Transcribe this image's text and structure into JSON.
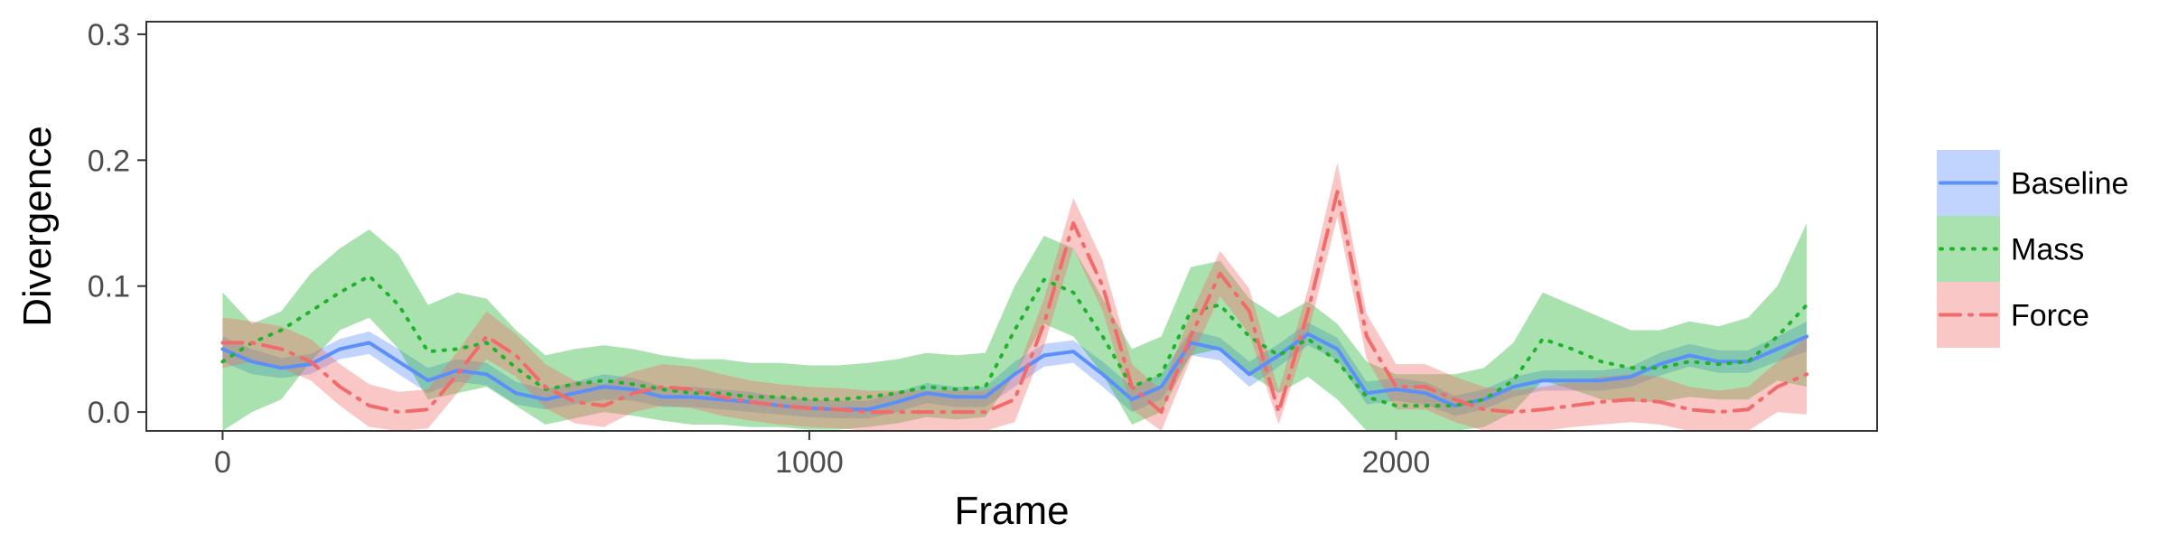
{
  "chart_data": {
    "type": "line",
    "title": "",
    "xlabel": "Frame",
    "ylabel": "Divergence",
    "xlim": [
      -130,
      2820
    ],
    "ylim": [
      -0.015,
      0.31
    ],
    "x_ticks": [
      0,
      1000,
      2000
    ],
    "y_ticks": [
      0.0,
      0.1,
      0.2,
      0.3
    ],
    "x_tick_labels": [
      "0",
      "1000",
      "2000"
    ],
    "y_tick_labels": [
      "0.0",
      "0.1",
      "0.2",
      "0.3"
    ],
    "grid": false,
    "legend_position": "right",
    "series": [
      {
        "name": "Baseline",
        "color": "#5b8ff9",
        "line_style": "solid",
        "x": [
          0,
          50,
          100,
          150,
          200,
          250,
          300,
          350,
          400,
          450,
          500,
          550,
          600,
          650,
          700,
          750,
          800,
          850,
          900,
          950,
          1000,
          1050,
          1100,
          1150,
          1200,
          1250,
          1300,
          1350,
          1400,
          1450,
          1500,
          1550,
          1600,
          1650,
          1700,
          1750,
          1800,
          1850,
          1900,
          1950,
          2000,
          2050,
          2100,
          2150,
          2200,
          2250,
          2300,
          2350,
          2400,
          2450,
          2500,
          2550,
          2600,
          2650,
          2700
        ],
        "values": [
          0.05,
          0.04,
          0.035,
          0.038,
          0.05,
          0.055,
          0.04,
          0.025,
          0.033,
          0.03,
          0.015,
          0.01,
          0.015,
          0.02,
          0.018,
          0.012,
          0.012,
          0.01,
          0.008,
          0.005,
          0.003,
          0.002,
          0.002,
          0.008,
          0.015,
          0.012,
          0.012,
          0.03,
          0.045,
          0.048,
          0.03,
          0.01,
          0.02,
          0.055,
          0.05,
          0.03,
          0.045,
          0.062,
          0.05,
          0.015,
          0.018,
          0.015,
          0.005,
          0.01,
          0.02,
          0.025,
          0.025,
          0.025,
          0.028,
          0.038,
          0.045,
          0.04,
          0.04,
          0.05,
          0.06
        ],
        "lower": [
          0.04,
          0.03,
          0.027,
          0.03,
          0.042,
          0.046,
          0.03,
          0.015,
          0.024,
          0.021,
          0.006,
          0.002,
          0.006,
          0.01,
          0.009,
          0.004,
          0.004,
          0.002,
          0.0,
          -0.002,
          -0.004,
          -0.005,
          -0.005,
          0.0,
          0.007,
          0.004,
          0.004,
          0.02,
          0.036,
          0.039,
          0.02,
          0.0,
          0.01,
          0.045,
          0.041,
          0.02,
          0.036,
          0.053,
          0.041,
          0.006,
          0.009,
          0.006,
          -0.003,
          0.002,
          0.012,
          0.017,
          0.017,
          0.017,
          0.02,
          0.029,
          0.036,
          0.031,
          0.031,
          0.04,
          0.048
        ],
        "upper": [
          0.06,
          0.05,
          0.043,
          0.046,
          0.058,
          0.064,
          0.05,
          0.035,
          0.042,
          0.039,
          0.024,
          0.018,
          0.024,
          0.03,
          0.027,
          0.02,
          0.02,
          0.018,
          0.016,
          0.012,
          0.01,
          0.009,
          0.009,
          0.016,
          0.023,
          0.02,
          0.02,
          0.04,
          0.054,
          0.057,
          0.04,
          0.02,
          0.03,
          0.065,
          0.059,
          0.04,
          0.054,
          0.071,
          0.059,
          0.024,
          0.027,
          0.024,
          0.013,
          0.018,
          0.028,
          0.033,
          0.033,
          0.033,
          0.036,
          0.047,
          0.054,
          0.049,
          0.049,
          0.06,
          0.072
        ]
      },
      {
        "name": "Mass",
        "color": "#1fb32c",
        "line_style": "dotted",
        "x": [
          0,
          50,
          100,
          150,
          200,
          250,
          300,
          350,
          400,
          450,
          500,
          550,
          600,
          650,
          700,
          750,
          800,
          850,
          900,
          950,
          1000,
          1050,
          1100,
          1150,
          1200,
          1250,
          1300,
          1350,
          1400,
          1450,
          1500,
          1550,
          1600,
          1650,
          1700,
          1750,
          1800,
          1850,
          1900,
          1950,
          2000,
          2050,
          2100,
          2150,
          2200,
          2250,
          2300,
          2350,
          2400,
          2450,
          2500,
          2550,
          2600,
          2650,
          2700
        ],
        "values": [
          0.04,
          0.055,
          0.065,
          0.08,
          0.095,
          0.108,
          0.085,
          0.048,
          0.05,
          0.055,
          0.035,
          0.018,
          0.022,
          0.025,
          0.022,
          0.018,
          0.015,
          0.015,
          0.012,
          0.012,
          0.01,
          0.01,
          0.012,
          0.015,
          0.02,
          0.018,
          0.02,
          0.065,
          0.105,
          0.095,
          0.06,
          0.02,
          0.03,
          0.08,
          0.085,
          0.06,
          0.045,
          0.058,
          0.04,
          0.012,
          0.005,
          0.005,
          0.005,
          0.01,
          0.025,
          0.058,
          0.05,
          0.04,
          0.035,
          0.035,
          0.04,
          0.038,
          0.04,
          0.06,
          0.085
        ],
        "lower": [
          -0.015,
          0.0,
          0.01,
          0.04,
          0.065,
          0.075,
          0.05,
          0.01,
          0.015,
          0.02,
          0.005,
          -0.01,
          -0.005,
          0.0,
          -0.003,
          -0.007,
          -0.01,
          -0.01,
          -0.012,
          -0.012,
          -0.014,
          -0.014,
          -0.012,
          -0.009,
          -0.004,
          -0.006,
          -0.004,
          0.03,
          0.07,
          0.06,
          0.03,
          -0.01,
          0.0,
          0.045,
          0.05,
          0.03,
          0.015,
          0.028,
          0.01,
          -0.015,
          -0.015,
          -0.015,
          -0.015,
          -0.012,
          0.0,
          0.025,
          0.018,
          0.01,
          0.008,
          0.008,
          0.012,
          0.01,
          0.01,
          0.025,
          0.02
        ],
        "upper": [
          0.095,
          0.07,
          0.08,
          0.11,
          0.13,
          0.145,
          0.125,
          0.085,
          0.095,
          0.09,
          0.065,
          0.045,
          0.05,
          0.053,
          0.05,
          0.045,
          0.042,
          0.042,
          0.039,
          0.039,
          0.037,
          0.037,
          0.039,
          0.042,
          0.047,
          0.045,
          0.047,
          0.1,
          0.14,
          0.13,
          0.09,
          0.05,
          0.06,
          0.115,
          0.12,
          0.09,
          0.075,
          0.088,
          0.07,
          0.04,
          0.03,
          0.03,
          0.03,
          0.035,
          0.055,
          0.095,
          0.085,
          0.075,
          0.065,
          0.065,
          0.072,
          0.068,
          0.075,
          0.1,
          0.15
        ]
      },
      {
        "name": "Force",
        "color": "#f26b6b",
        "line_style": "dashdot",
        "x": [
          0,
          50,
          100,
          150,
          200,
          250,
          300,
          350,
          400,
          450,
          500,
          550,
          600,
          650,
          700,
          750,
          800,
          850,
          900,
          950,
          1000,
          1050,
          1100,
          1150,
          1200,
          1250,
          1300,
          1350,
          1400,
          1450,
          1500,
          1550,
          1600,
          1650,
          1700,
          1750,
          1800,
          1850,
          1900,
          1950,
          2000,
          2050,
          2100,
          2150,
          2200,
          2250,
          2300,
          2350,
          2400,
          2450,
          2500,
          2550,
          2600,
          2650,
          2700
        ],
        "values": [
          0.055,
          0.055,
          0.05,
          0.04,
          0.02,
          0.005,
          0.0,
          0.002,
          0.03,
          0.06,
          0.045,
          0.02,
          0.008,
          0.005,
          0.015,
          0.02,
          0.018,
          0.012,
          0.008,
          0.005,
          0.003,
          0.002,
          0.0,
          0.0,
          0.0,
          0.0,
          0.0,
          0.01,
          0.07,
          0.15,
          0.1,
          0.02,
          0.0,
          0.06,
          0.11,
          0.08,
          0.0,
          0.08,
          0.175,
          0.06,
          0.02,
          0.02,
          0.01,
          0.002,
          0.0,
          0.002,
          0.005,
          0.008,
          0.01,
          0.008,
          0.002,
          0.0,
          0.002,
          0.02,
          0.03
        ],
        "lower": [
          0.035,
          0.04,
          0.035,
          0.025,
          0.005,
          -0.012,
          -0.015,
          -0.013,
          0.015,
          0.042,
          0.028,
          0.003,
          -0.009,
          -0.012,
          0.0,
          0.005,
          0.003,
          -0.003,
          -0.007,
          -0.01,
          -0.012,
          -0.013,
          -0.015,
          -0.015,
          -0.015,
          -0.015,
          -0.015,
          -0.008,
          0.052,
          0.13,
          0.08,
          0.002,
          -0.015,
          0.042,
          0.092,
          0.062,
          -0.01,
          0.062,
          0.155,
          0.042,
          0.002,
          0.002,
          -0.008,
          -0.015,
          -0.015,
          -0.015,
          -0.012,
          -0.01,
          -0.008,
          -0.01,
          -0.015,
          -0.015,
          -0.015,
          0.0,
          -0.002
        ],
        "upper": [
          0.075,
          0.072,
          0.068,
          0.058,
          0.038,
          0.022,
          0.016,
          0.018,
          0.048,
          0.08,
          0.062,
          0.038,
          0.025,
          0.022,
          0.032,
          0.038,
          0.036,
          0.03,
          0.025,
          0.022,
          0.02,
          0.019,
          0.017,
          0.017,
          0.017,
          0.017,
          0.017,
          0.028,
          0.09,
          0.17,
          0.12,
          0.038,
          0.017,
          0.078,
          0.128,
          0.098,
          0.017,
          0.098,
          0.198,
          0.078,
          0.038,
          0.038,
          0.028,
          0.02,
          0.017,
          0.02,
          0.024,
          0.028,
          0.03,
          0.028,
          0.02,
          0.017,
          0.02,
          0.04,
          0.06
        ]
      }
    ]
  }
}
